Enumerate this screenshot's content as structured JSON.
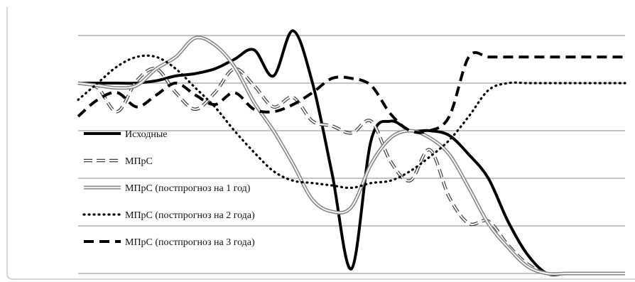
{
  "chart_data": {
    "type": "line",
    "title": "",
    "xlabel": "",
    "ylabel": "",
    "x": [
      1,
      2,
      3,
      4,
      5,
      6,
      7,
      8,
      9,
      10,
      11,
      12,
      13,
      14,
      15,
      16,
      17,
      18,
      19,
      20,
      21,
      22,
      23,
      24,
      25,
      26,
      27,
      28,
      29
    ],
    "ylim": [
      0,
      5
    ],
    "grid": true,
    "legend": "left",
    "series": [
      {
        "name": "Исходные",
        "style": "solid-thick",
        "color": "#000000",
        "values": [
          4.0,
          4.0,
          4.0,
          4.0,
          4.05,
          4.15,
          4.2,
          4.3,
          4.5,
          4.7,
          4.15,
          5.1,
          4.0,
          2.1,
          0.1,
          2.8,
          3.2,
          3.0,
          3.0,
          2.9,
          2.5,
          2.0,
          1.1,
          0.4,
          0.0,
          0.0,
          0.0,
          0.0,
          0.0
        ]
      },
      {
        "name": "МПрС",
        "style": "dashed-outline",
        "color": "#444444",
        "values": [
          4.0,
          3.9,
          3.4,
          4.05,
          4.3,
          3.8,
          3.45,
          3.8,
          4.3,
          3.95,
          3.5,
          3.7,
          3.2,
          3.1,
          2.95,
          3.2,
          2.35,
          1.95,
          2.6,
          1.6,
          1.05,
          1.1,
          0.6,
          0.2,
          0.0,
          0.0,
          0.0,
          0.0,
          0.0
        ]
      },
      {
        "name": "МПрС (постпрогноз на 1 год)",
        "style": "double",
        "color": "#888888",
        "values": [
          4.0,
          3.95,
          3.9,
          3.95,
          4.3,
          4.55,
          4.95,
          4.8,
          4.35,
          3.6,
          3.0,
          2.3,
          1.55,
          1.3,
          1.4,
          2.3,
          2.85,
          3.0,
          2.85,
          2.5,
          1.8,
          1.05,
          0.55,
          0.15,
          0.0,
          0.0,
          0.0,
          0.0,
          0.0
        ]
      },
      {
        "name": "МПрС (постпрогноз на 2 года)",
        "style": "dotted",
        "color": "#000000",
        "values": [
          3.65,
          4.0,
          4.35,
          4.55,
          4.55,
          4.3,
          3.9,
          3.5,
          3.0,
          2.55,
          2.15,
          1.95,
          1.9,
          1.85,
          1.8,
          1.9,
          1.95,
          2.15,
          2.45,
          2.8,
          3.3,
          3.85,
          4.0,
          4.0,
          4.0,
          4.0,
          4.0,
          4.0,
          4.0
        ]
      },
      {
        "name": "МПрС (постпрогноз на 3 года)",
        "style": "dashed-thick",
        "color": "#000000",
        "values": [
          3.3,
          3.65,
          3.8,
          3.5,
          3.75,
          4.0,
          3.75,
          3.55,
          3.8,
          3.45,
          3.4,
          3.55,
          3.8,
          4.1,
          4.1,
          3.95,
          3.35,
          3.0,
          3.0,
          3.3,
          4.55,
          4.55,
          4.55,
          4.55,
          4.55,
          4.55,
          4.55,
          4.55,
          4.55
        ]
      }
    ]
  }
}
